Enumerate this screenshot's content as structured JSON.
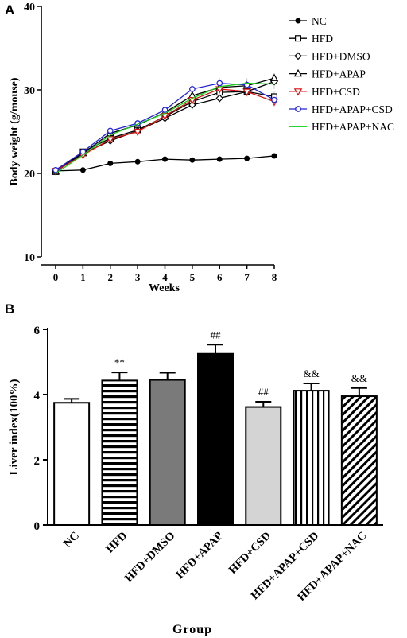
{
  "chart_data": [
    {
      "panel": "A",
      "type": "line",
      "xlabel": "Weeks",
      "ylabel": "Body weight (g/mouse)",
      "xlim": [
        0,
        8
      ],
      "ylim": [
        10,
        40
      ],
      "x": [
        0,
        1,
        2,
        3,
        4,
        5,
        6,
        7,
        8
      ],
      "xticks": [
        "0",
        "1",
        "2",
        "3",
        "4",
        "5",
        "6",
        "7",
        "8"
      ],
      "yticks": [
        "10",
        "20",
        "30",
        "40"
      ],
      "grid": false,
      "legend": "top-right",
      "series": [
        {
          "name": "NC",
          "marker": "filled-circle",
          "color": "#000000",
          "values": [
            20.3,
            20.4,
            21.2,
            21.4,
            21.7,
            21.6,
            21.7,
            21.8,
            22.1
          ]
        },
        {
          "name": "HFD",
          "marker": "square",
          "color": "#000000",
          "values": [
            20.2,
            22.6,
            24.2,
            25.2,
            26.8,
            28.6,
            29.7,
            29.8,
            29.2
          ]
        },
        {
          "name": "HFD+DMSO",
          "marker": "diamond",
          "color": "#000000",
          "values": [
            20.3,
            22.4,
            23.9,
            25.1,
            26.6,
            28.2,
            29.0,
            29.8,
            31.0
          ]
        },
        {
          "name": "HFD+APAP",
          "marker": "triangle",
          "color": "#000000",
          "values": [
            20.2,
            22.4,
            24.8,
            25.8,
            27.3,
            29.3,
            30.3,
            30.5,
            31.4
          ]
        },
        {
          "name": "HFD+CSD",
          "marker": "triangle-down",
          "color": "#dd1111",
          "values": [
            20.3,
            22.2,
            24.1,
            25.0,
            26.9,
            28.8,
            30.1,
            29.8,
            28.6
          ]
        },
        {
          "name": "HFD+APAP+CSD",
          "marker": "circle",
          "color": "#2222dd",
          "values": [
            20.4,
            22.6,
            25.1,
            26.0,
            27.6,
            30.1,
            30.8,
            30.6,
            28.8
          ]
        },
        {
          "name": "HFD+APAP+NAC",
          "marker": "none",
          "color": "#11cc11",
          "values": [
            20.0,
            22.2,
            24.6,
            25.9,
            27.2,
            29.0,
            30.4,
            30.8,
            30.7
          ]
        }
      ]
    },
    {
      "panel": "B",
      "type": "bar",
      "xlabel": "Group",
      "ylabel": "Liver index(100%)",
      "ylim": [
        0,
        6
      ],
      "yticks": [
        "0",
        "2",
        "4",
        "6"
      ],
      "categories": [
        "NC",
        "HFD",
        "HFD+DMSO",
        "HFD+APAP",
        "HFD+CSD",
        "HFD+APAP+CSD",
        "HFD+APAP+NAC"
      ],
      "values": [
        3.75,
        4.43,
        4.45,
        5.25,
        3.62,
        4.12,
        3.95
      ],
      "errors": [
        0.12,
        0.25,
        0.22,
        0.28,
        0.16,
        0.22,
        0.25
      ],
      "annotations": [
        "",
        "**",
        "",
        "##",
        "##",
        "&&",
        "&&"
      ],
      "fills": [
        "white",
        "horizontal-stripes",
        "gray",
        "black",
        "lightgray",
        "vertical-stripes",
        "diagonal-stripes"
      ],
      "colors": {
        "gray": "#7a7a7a",
        "lightgray": "#d4d4d4",
        "black": "#000000"
      }
    }
  ],
  "panels": {
    "a_label": "A",
    "b_label": "B"
  }
}
